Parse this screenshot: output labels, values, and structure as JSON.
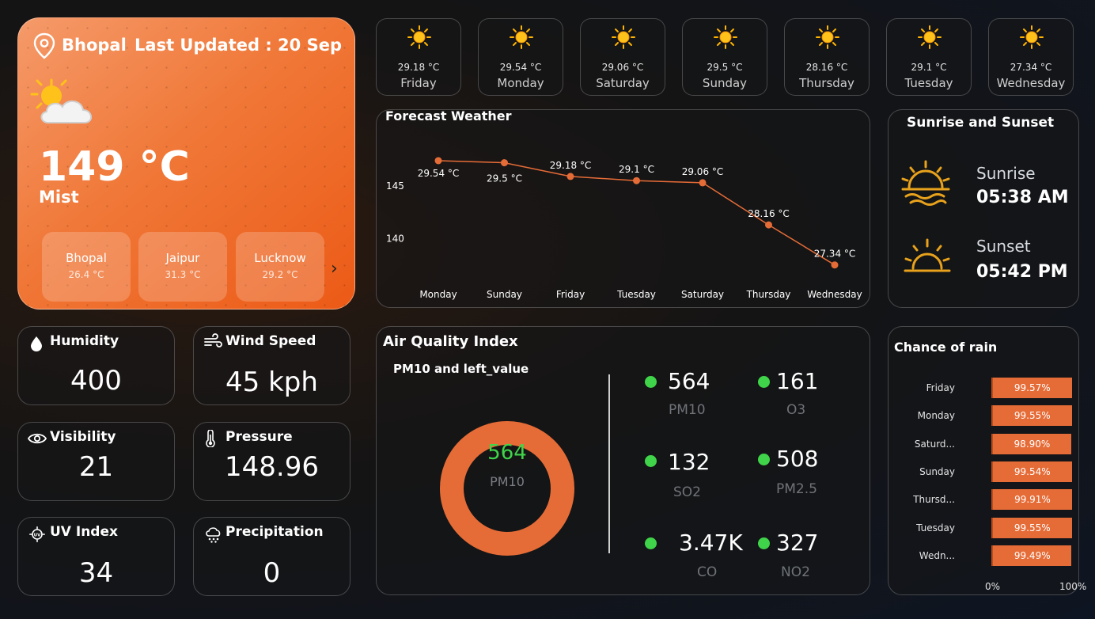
{
  "location": {
    "city": "Bhopal",
    "last_updated": "Last Updated : 20 Sep"
  },
  "current": {
    "temp": "149 °C",
    "condition": "Mist"
  },
  "cities": [
    {
      "name": "Bhopal",
      "temp": "26.4 °C"
    },
    {
      "name": "Jaipur",
      "temp": "31.3 °C"
    },
    {
      "name": "Lucknow",
      "temp": "29.2 °C"
    }
  ],
  "days": [
    {
      "temp": "29.18 °C",
      "day": "Friday"
    },
    {
      "temp": "29.54 °C",
      "day": "Monday"
    },
    {
      "temp": "29.06 °C",
      "day": "Saturday"
    },
    {
      "temp": "29.5 °C",
      "day": "Sunday"
    },
    {
      "temp": "28.16 °C",
      "day": "Thursday"
    },
    {
      "temp": "29.1 °C",
      "day": "Tuesday"
    },
    {
      "temp": "27.34 °C",
      "day": "Wednesday"
    }
  ],
  "forecast": {
    "title": "Forecast Weather"
  },
  "chart_data": {
    "type": "line",
    "title": "Forecast Weather",
    "categories": [
      "Monday",
      "Sunday",
      "Friday",
      "Tuesday",
      "Saturday",
      "Thursday",
      "Wednesday"
    ],
    "values": [
      147.4,
      147.2,
      145.9,
      145.5,
      145.3,
      141.3,
      137.5
    ],
    "data_labels": [
      "29.54 °C",
      "29.5 °C",
      "29.18 °C",
      "29.1 °C",
      "29.06 °C",
      "28.16 °C",
      "27.34 °C"
    ],
    "y_ticks": [
      "145",
      "140"
    ],
    "y_tick_values": [
      145,
      140
    ],
    "ylim": [
      136.5,
      149.5
    ],
    "line_color": "#e66c37",
    "grid": false
  },
  "sun": {
    "title": "Sunrise and Sunset",
    "sunrise_label": "Sunrise",
    "sunrise_time": "05:38 AM",
    "sunset_label": "Sunset",
    "sunset_time": "05:42 PM"
  },
  "metrics": {
    "humidity": {
      "label": "Humidity",
      "value": "400",
      "icon": "droplet-icon"
    },
    "wind": {
      "label": "Wind Speed",
      "value": "45 kph",
      "icon": "wind-icon"
    },
    "visibility": {
      "label": "Visibility",
      "value": "21",
      "icon": "eye-icon"
    },
    "pressure": {
      "label": "Pressure",
      "value": "148.96",
      "icon": "thermometer-icon"
    },
    "uv": {
      "label": "UV Index",
      "value": "34",
      "icon": "uv-icon"
    },
    "precipitation": {
      "label": "Precipitation",
      "value": "0",
      "icon": "cloud-rain-icon"
    }
  },
  "aqi": {
    "title": "Air Quality Index",
    "subtitle": "PM10 and left_value",
    "donut_value": "564",
    "donut_label": "PM10",
    "items": [
      {
        "value": "564",
        "name": "PM10"
      },
      {
        "value": "161",
        "name": "O3"
      },
      {
        "value": "132",
        "name": "SO2"
      },
      {
        "value": "508",
        "name": "PM2.5"
      },
      {
        "value": "3.47K",
        "name": "CO"
      },
      {
        "value": "327",
        "name": "NO2"
      }
    ],
    "dot_color": "#3fd449",
    "donut_color": "#e66c37"
  },
  "rain": {
    "title": "Chance of rain",
    "axis_min": "0%",
    "axis_max": "100%",
    "rows": [
      {
        "day": "Friday",
        "label": "99.57%",
        "value": 99.57
      },
      {
        "day": "Monday",
        "label": "99.55%",
        "value": 99.55
      },
      {
        "day": "Saturd...",
        "label": "98.90%",
        "value": 98.9
      },
      {
        "day": "Sunday",
        "label": "99.54%",
        "value": 99.54
      },
      {
        "day": "Thursd...",
        "label": "99.91%",
        "value": 99.91
      },
      {
        "day": "Tuesday",
        "label": "99.55%",
        "value": 99.55
      },
      {
        "day": "Wedn...",
        "label": "99.49%",
        "value": 99.49
      }
    ]
  }
}
